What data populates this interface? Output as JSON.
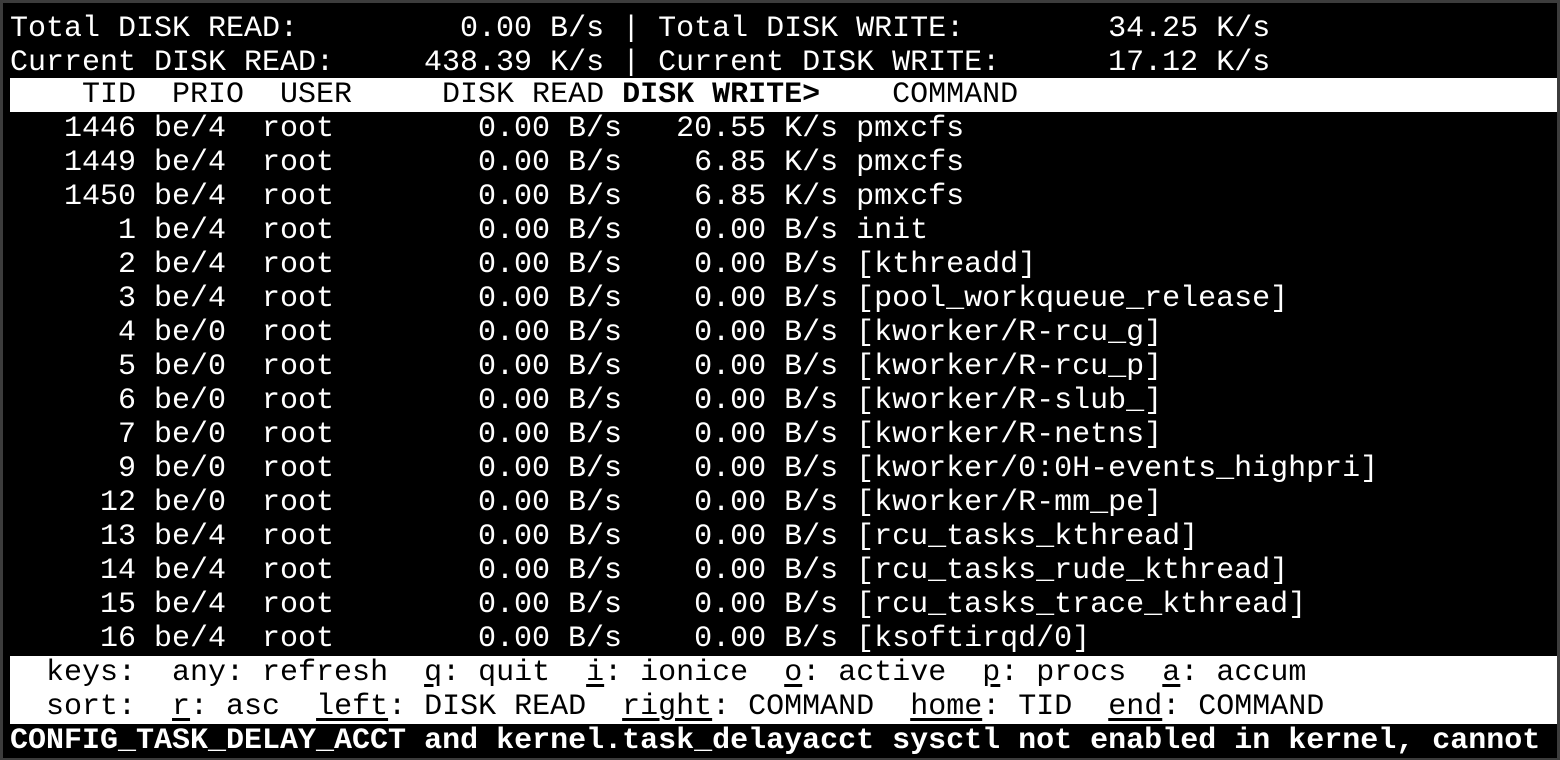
{
  "summary": {
    "total_read_label": "Total DISK READ:",
    "total_read": "0.00 B/s",
    "total_write_label": "Total DISK WRITE:",
    "total_write": "34.25 K/s",
    "current_read_label": "Current DISK READ:",
    "current_read": "438.39 K/s",
    "current_write_label": "Current DISK WRITE:",
    "current_write": "17.12 K/s",
    "separator": "|"
  },
  "columns": {
    "tid": "TID",
    "prio": "PRIO",
    "user": "USER",
    "read": "DISK READ",
    "write": "DISK WRITE>",
    "command": "COMMAND"
  },
  "rows": [
    {
      "tid": "1446",
      "prio": "be/4",
      "user": "root",
      "read": "0.00 B/s",
      "write": "20.55 K/s",
      "command": "pmxcfs"
    },
    {
      "tid": "1449",
      "prio": "be/4",
      "user": "root",
      "read": "0.00 B/s",
      "write": "6.85 K/s",
      "command": "pmxcfs"
    },
    {
      "tid": "1450",
      "prio": "be/4",
      "user": "root",
      "read": "0.00 B/s",
      "write": "6.85 K/s",
      "command": "pmxcfs"
    },
    {
      "tid": "1",
      "prio": "be/4",
      "user": "root",
      "read": "0.00 B/s",
      "write": "0.00 B/s",
      "command": "init"
    },
    {
      "tid": "2",
      "prio": "be/4",
      "user": "root",
      "read": "0.00 B/s",
      "write": "0.00 B/s",
      "command": "[kthreadd]"
    },
    {
      "tid": "3",
      "prio": "be/4",
      "user": "root",
      "read": "0.00 B/s",
      "write": "0.00 B/s",
      "command": "[pool_workqueue_release]"
    },
    {
      "tid": "4",
      "prio": "be/0",
      "user": "root",
      "read": "0.00 B/s",
      "write": "0.00 B/s",
      "command": "[kworker/R-rcu_g]"
    },
    {
      "tid": "5",
      "prio": "be/0",
      "user": "root",
      "read": "0.00 B/s",
      "write": "0.00 B/s",
      "command": "[kworker/R-rcu_p]"
    },
    {
      "tid": "6",
      "prio": "be/0",
      "user": "root",
      "read": "0.00 B/s",
      "write": "0.00 B/s",
      "command": "[kworker/R-slub_]"
    },
    {
      "tid": "7",
      "prio": "be/0",
      "user": "root",
      "read": "0.00 B/s",
      "write": "0.00 B/s",
      "command": "[kworker/R-netns]"
    },
    {
      "tid": "9",
      "prio": "be/0",
      "user": "root",
      "read": "0.00 B/s",
      "write": "0.00 B/s",
      "command": "[kworker/0:0H-events_highpri]"
    },
    {
      "tid": "12",
      "prio": "be/0",
      "user": "root",
      "read": "0.00 B/s",
      "write": "0.00 B/s",
      "command": "[kworker/R-mm_pe]"
    },
    {
      "tid": "13",
      "prio": "be/4",
      "user": "root",
      "read": "0.00 B/s",
      "write": "0.00 B/s",
      "command": "[rcu_tasks_kthread]"
    },
    {
      "tid": "14",
      "prio": "be/4",
      "user": "root",
      "read": "0.00 B/s",
      "write": "0.00 B/s",
      "command": "[rcu_tasks_rude_kthread]"
    },
    {
      "tid": "15",
      "prio": "be/4",
      "user": "root",
      "read": "0.00 B/s",
      "write": "0.00 B/s",
      "command": "[rcu_tasks_trace_kthread]"
    },
    {
      "tid": "16",
      "prio": "be/4",
      "user": "root",
      "read": "0.00 B/s",
      "write": "0.00 B/s",
      "command": "[ksoftirqd/0]"
    }
  ],
  "keys": {
    "label": "keys:",
    "items": [
      {
        "key": "any",
        "desc": "refresh",
        "underline": false
      },
      {
        "key": "q",
        "desc": "quit",
        "underline": true
      },
      {
        "key": "i",
        "desc": "ionice",
        "underline": true
      },
      {
        "key": "o",
        "desc": "active",
        "underline": true
      },
      {
        "key": "p",
        "desc": "procs",
        "underline": true
      },
      {
        "key": "a",
        "desc": "accum",
        "underline": true
      }
    ]
  },
  "sort": {
    "label": "sort:",
    "items": [
      {
        "key": "r",
        "desc": "asc"
      },
      {
        "key": "left",
        "desc": "DISK READ"
      },
      {
        "key": "right",
        "desc": "COMMAND"
      },
      {
        "key": "home",
        "desc": "TID"
      },
      {
        "key": "end",
        "desc": "COMMAND"
      }
    ]
  },
  "warning": "CONFIG_TASK_DELAY_ACCT and kernel.task_delayacct sysctl not enabled in kernel, cannot"
}
